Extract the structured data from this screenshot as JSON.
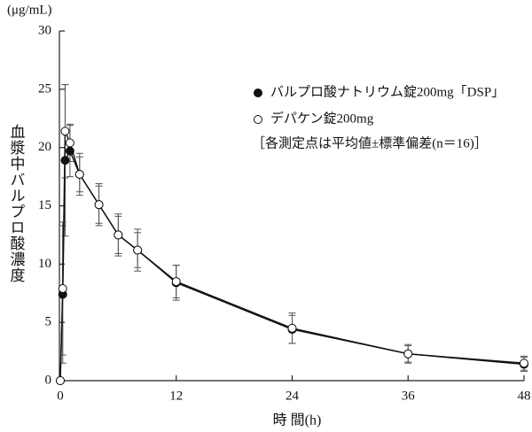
{
  "chart_data": {
    "type": "line",
    "y_unit": "(μg/mL)",
    "y_label": "血漿中バルプロ酸濃度",
    "x_label": "時 間(h)",
    "note": "［各測定点は平均値±標準偏差(n＝16)］",
    "x": [
      0,
      0.25,
      0.5,
      1,
      2,
      4,
      6,
      8,
      12,
      24,
      36,
      48
    ],
    "series": [
      {
        "name": "バルプロ酸ナトリウム錠200mg「DSP」",
        "color": "#111111",
        "marker": "filled",
        "values": [
          0,
          7.4,
          18.9,
          19.7,
          17.7,
          15.1,
          12.5,
          11.2,
          8.4,
          4.4,
          2.3,
          1.4
        ],
        "errors": [
          0,
          5.9,
          6.5,
          2.2,
          1.5,
          1.6,
          1.6,
          1.5,
          1.5,
          1.2,
          0.7,
          0.6
        ]
      },
      {
        "name": "デパケン錠200mg",
        "color": "#111111",
        "marker": "open",
        "values": [
          0,
          7.9,
          21.4,
          20.4,
          17.7,
          15.1,
          12.5,
          11.2,
          8.5,
          4.5,
          2.3,
          1.5
        ],
        "errors": [
          0,
          5.7,
          4.0,
          1.6,
          1.8,
          1.8,
          1.8,
          1.8,
          1.4,
          1.3,
          0.8,
          0.6
        ]
      }
    ],
    "xlim": [
      0,
      48
    ],
    "xticks": [
      0,
      12,
      24,
      36,
      48
    ],
    "ylim": [
      0,
      30
    ],
    "yticks": [
      0,
      5,
      10,
      15,
      20,
      25,
      30
    ]
  }
}
